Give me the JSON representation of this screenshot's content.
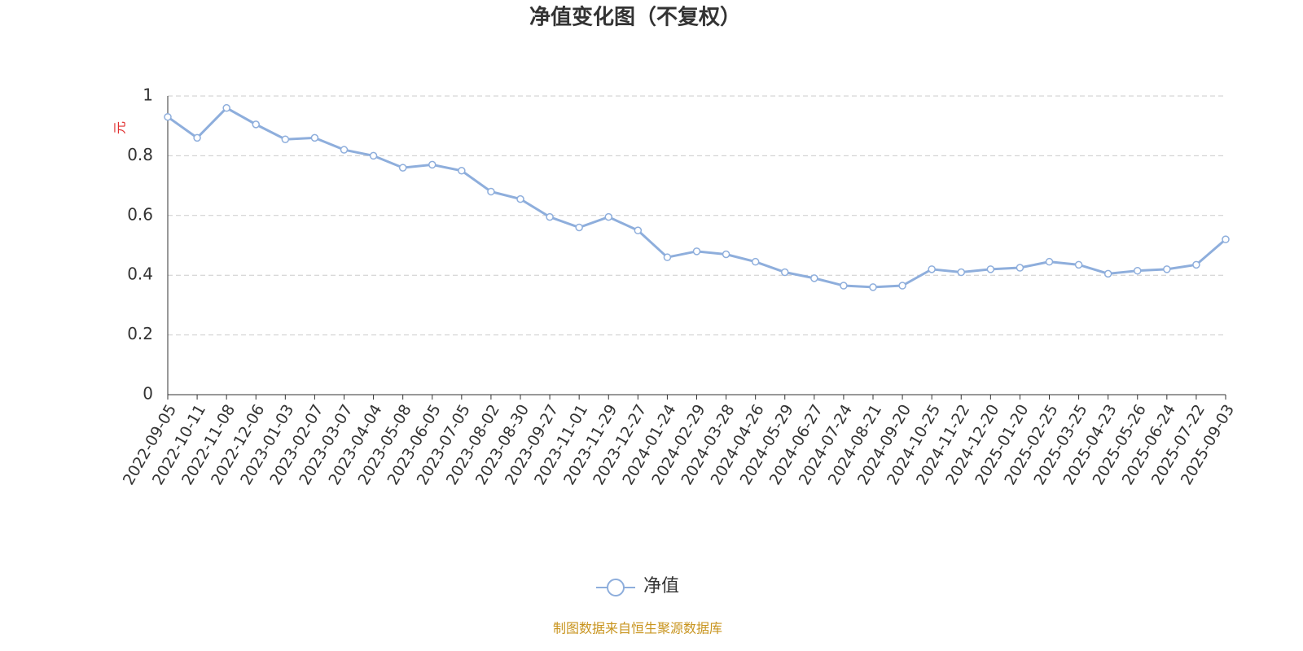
{
  "chart_data": {
    "type": "line",
    "title": "净值变化图（不复权）",
    "y_label": "元",
    "source": "制图数据来自恒生聚源数据库",
    "categories": [
      "2022-09-05",
      "2022-10-11",
      "2022-11-08",
      "2022-12-06",
      "2023-01-03",
      "2023-02-07",
      "2023-03-07",
      "2023-04-04",
      "2023-05-08",
      "2023-06-05",
      "2023-07-05",
      "2023-08-02",
      "2023-08-30",
      "2023-09-27",
      "2023-11-01",
      "2023-11-29",
      "2023-12-27",
      "2024-01-24",
      "2024-02-29",
      "2024-03-28",
      "2024-04-26",
      "2024-05-29",
      "2024-06-27",
      "2024-07-24",
      "2024-08-21",
      "2024-09-20",
      "2024-10-25",
      "2024-11-22",
      "2024-12-20",
      "2025-01-20",
      "2025-02-25",
      "2025-03-25",
      "2025-04-23",
      "2025-05-26",
      "2025-06-24",
      "2025-07-22",
      "2025-09-03"
    ],
    "series": [
      {
        "name": "净值",
        "color": "#8eaedc",
        "values": [
          0.93,
          0.86,
          0.96,
          0.905,
          0.855,
          0.86,
          0.82,
          0.8,
          0.76,
          0.77,
          0.75,
          0.68,
          0.655,
          0.595,
          0.56,
          0.595,
          0.55,
          0.46,
          0.48,
          0.47,
          0.445,
          0.41,
          0.39,
          0.365,
          0.36,
          0.365,
          0.42,
          0.41,
          0.42,
          0.425,
          0.445,
          0.435,
          0.405,
          0.415,
          0.42,
          0.435,
          0.52
        ]
      }
    ],
    "ylim": [
      0,
      1
    ],
    "yticks": [
      0,
      0.2,
      0.4,
      0.6,
      0.8,
      1
    ],
    "grid": true,
    "legend": "bottom"
  }
}
